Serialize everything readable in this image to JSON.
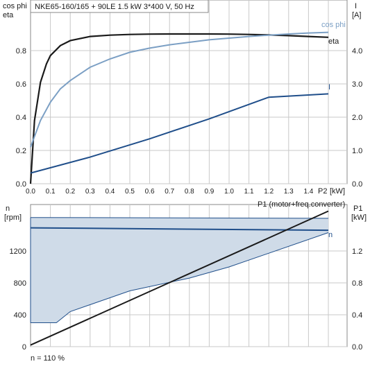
{
  "header": {
    "title": "NKE65-160/165 + 90LE   1.5 kW   3*400 V, 50 Hz"
  },
  "footer": {
    "note": "n = 110 %"
  },
  "colors": {
    "black": "#1a1a1a",
    "light_blue": "#7b9fc4",
    "dark_blue": "#1f4e8a",
    "band_fill": "#cfdbe8",
    "grid": "#c8c8c8"
  },
  "chart_data": [
    {
      "type": "line",
      "x_axis": {
        "label": "P2",
        "unit": "[kW]",
        "range": [
          0,
          1.5
        ],
        "ticks": [
          "0.0",
          "0.1",
          "0.2",
          "0.3",
          "0.4",
          "0.5",
          "0.6",
          "0.7",
          "0.8",
          "0.9",
          "1.0",
          "1.1",
          "1.2",
          "1.3",
          "1.4"
        ]
      },
      "y_left": {
        "label_line1": "cos phi",
        "label_line2": "eta",
        "range": [
          0,
          1.0
        ],
        "ticks": [
          "0.0",
          "0.2",
          "0.4",
          "0.6",
          "0.8"
        ]
      },
      "y_right": {
        "label_line1": "I",
        "label_line2": "[A]",
        "range": [
          0,
          5.0
        ],
        "ticks": [
          "0.0",
          "1.0",
          "2.0",
          "3.0",
          "4.0"
        ]
      },
      "series": [
        {
          "name": "eta",
          "axis": "left",
          "color": "#1a1a1a",
          "x": [
            0.0,
            0.02,
            0.05,
            0.08,
            0.1,
            0.15,
            0.2,
            0.3,
            0.4,
            0.5,
            0.6,
            0.7,
            0.8,
            0.9,
            1.0,
            1.1,
            1.2,
            1.3,
            1.4,
            1.5
          ],
          "y": [
            0.0,
            0.38,
            0.61,
            0.72,
            0.77,
            0.83,
            0.86,
            0.885,
            0.893,
            0.897,
            0.899,
            0.9,
            0.9,
            0.9,
            0.899,
            0.897,
            0.894,
            0.89,
            0.885,
            0.88
          ]
        },
        {
          "name": "cos phi",
          "axis": "left",
          "color": "#7b9fc4",
          "x": [
            0.0,
            0.05,
            0.1,
            0.15,
            0.2,
            0.3,
            0.4,
            0.5,
            0.6,
            0.7,
            0.8,
            0.9,
            1.0,
            1.1,
            1.2,
            1.3,
            1.4,
            1.5
          ],
          "y": [
            0.22,
            0.38,
            0.49,
            0.57,
            0.62,
            0.7,
            0.75,
            0.79,
            0.815,
            0.835,
            0.85,
            0.865,
            0.875,
            0.885,
            0.893,
            0.9,
            0.906,
            0.91
          ]
        },
        {
          "name": "I",
          "axis": "right",
          "color": "#1f4e8a",
          "x": [
            0.0,
            0.3,
            0.6,
            0.9,
            1.2,
            1.5
          ],
          "y": [
            0.32,
            0.8,
            1.35,
            1.95,
            2.6,
            2.7
          ]
        }
      ]
    },
    {
      "type": "area",
      "x_axis": {
        "range": [
          0,
          1.5
        ]
      },
      "y_left": {
        "label_line1": "n",
        "label_line2": "[rpm]",
        "range": [
          0,
          1600
        ],
        "ticks": [
          "0",
          "400",
          "800",
          "1200"
        ]
      },
      "y_right": {
        "label_line1": "P1",
        "label_line2": "[kW]",
        "range": [
          0,
          1.6
        ],
        "ticks": [
          "0.0",
          "0.4",
          "0.8",
          "1.2"
        ]
      },
      "band": {
        "name": "n",
        "upper": {
          "x": [
            0.0,
            1.5
          ],
          "y": [
            1620,
            1610
          ]
        },
        "lower": {
          "x": [
            0.0,
            0.13,
            0.2,
            0.5,
            0.8,
            1.0,
            1.5
          ],
          "y": [
            300,
            300,
            440,
            700,
            860,
            1000,
            1430
          ]
        }
      },
      "series": [
        {
          "name": "n",
          "axis": "left",
          "color": "#1f4e8a",
          "x": [
            0.0,
            1.5
          ],
          "y": [
            1490,
            1460
          ]
        },
        {
          "name": "P1 (motor+freq.converter)",
          "axis": "right",
          "color": "#1a1a1a",
          "x": [
            0.0,
            1.5
          ],
          "y": [
            0.02,
            1.7
          ]
        }
      ]
    }
  ]
}
